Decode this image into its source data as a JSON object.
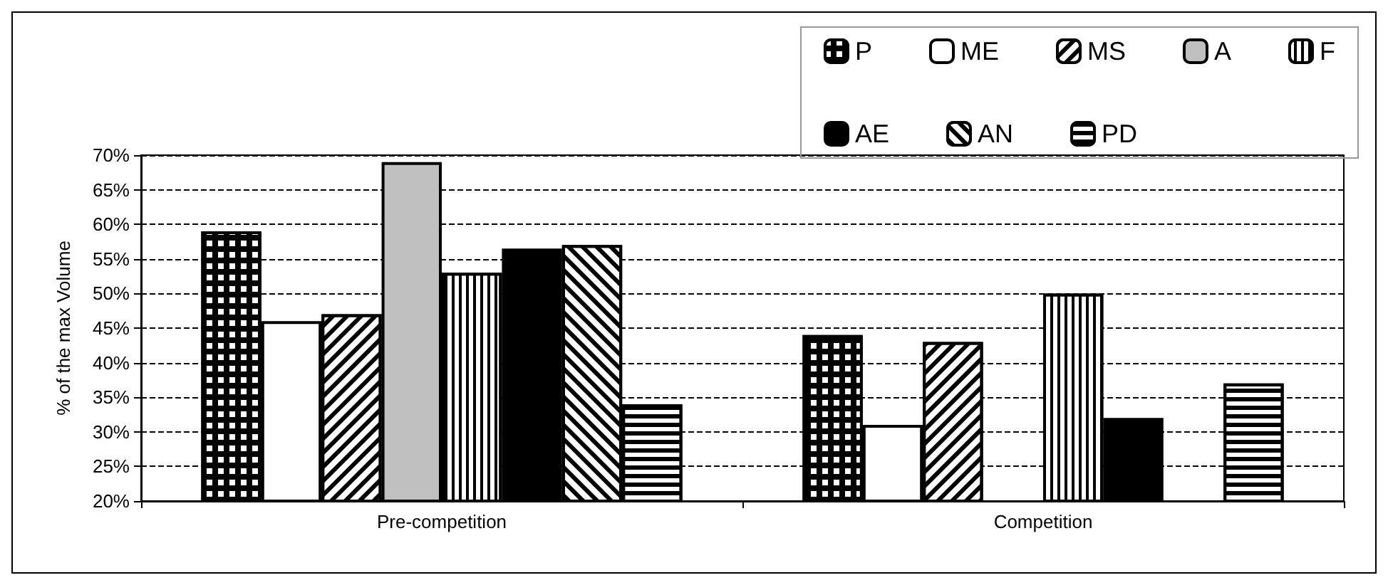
{
  "chart_data": {
    "type": "bar",
    "ylabel": "% of the max Volume",
    "categories": [
      "Pre-competition",
      "Competition"
    ],
    "series": [
      {
        "name": "P",
        "color": "#000000",
        "values": [
          59,
          44
        ]
      },
      {
        "name": "ME",
        "color": "#ffffff",
        "values": [
          46,
          31
        ]
      },
      {
        "name": "MS",
        "color": "#ffffff",
        "values": [
          47,
          43
        ]
      },
      {
        "name": "A",
        "color": "#c0c0c0",
        "values": [
          69,
          null
        ]
      },
      {
        "name": "F",
        "color": "#ffffff",
        "values": [
          53,
          50
        ]
      },
      {
        "name": "AE",
        "color": "#000000",
        "values": [
          56.5,
          32
        ]
      },
      {
        "name": "AN",
        "color": "#ffffff",
        "values": [
          57,
          null
        ]
      },
      {
        "name": "PD",
        "color": "#ffffff",
        "values": [
          34,
          37
        ]
      }
    ],
    "ylim": [
      20,
      70
    ],
    "yticks": [
      {
        "value": 20,
        "label": "20%"
      },
      {
        "value": 25,
        "label": "25%"
      },
      {
        "value": 30,
        "label": "30%"
      },
      {
        "value": 35,
        "label": "35%"
      },
      {
        "value": 40,
        "label": "40%"
      },
      {
        "value": 45,
        "label": "45%"
      },
      {
        "value": 50,
        "label": "50%"
      },
      {
        "value": 55,
        "label": "55%"
      },
      {
        "value": 60,
        "label": "60%"
      },
      {
        "value": 65,
        "label": "65%"
      },
      {
        "value": 70,
        "label": "70%"
      }
    ],
    "grid": "y",
    "legend": "top right"
  }
}
